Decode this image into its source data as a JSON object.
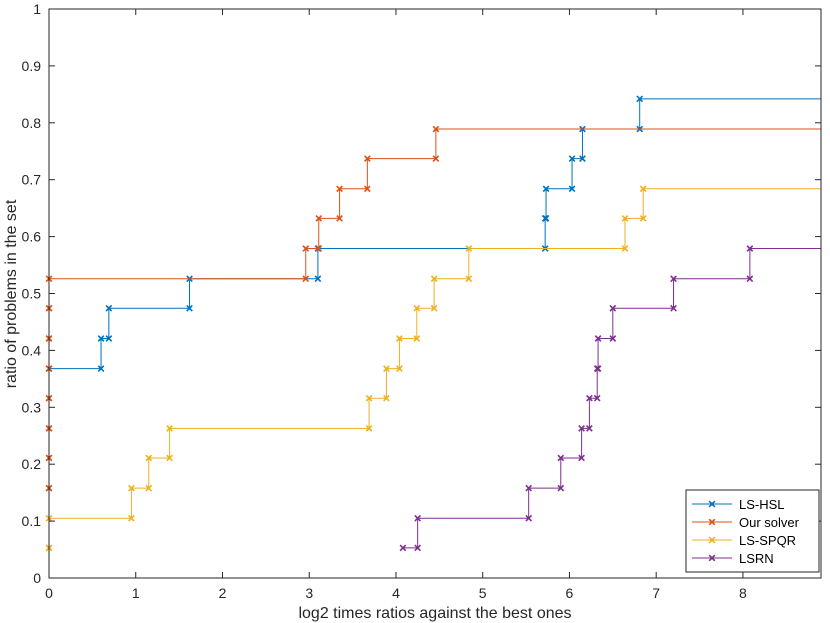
{
  "chart_data": {
    "type": "line",
    "step": true,
    "title": "",
    "xlabel": "log2 times ratios against the best ones",
    "ylabel": "ratio of problems in the set",
    "xlim": [
      0,
      8.9
    ],
    "ylim": [
      0,
      1
    ],
    "xticks": [
      0,
      1,
      2,
      3,
      4,
      5,
      6,
      7,
      8
    ],
    "yticks": [
      0,
      0.1,
      0.2,
      0.3,
      0.4,
      0.5,
      0.6,
      0.7,
      0.8,
      0.9,
      1
    ],
    "xtick_labels": [
      "0",
      "1",
      "2",
      "3",
      "4",
      "5",
      "6",
      "7",
      "8"
    ],
    "ytick_labels": [
      "0",
      "0.1",
      "0.2",
      "0.3",
      "0.4",
      "0.5",
      "0.6",
      "0.7",
      "0.8",
      "0.9",
      "1"
    ],
    "legend_position": "bottom-right",
    "series": [
      {
        "name": "LS-HSL",
        "color": "#0072BD",
        "points": [
          [
            0,
            0.368
          ],
          [
            0.6,
            0.421
          ],
          [
            0.69,
            0.474
          ],
          [
            1.62,
            0.526
          ],
          [
            3.1,
            0.579
          ],
          [
            5.72,
            0.632
          ],
          [
            5.73,
            0.684
          ],
          [
            6.03,
            0.737
          ],
          [
            6.15,
            0.789
          ],
          [
            6.81,
            0.842
          ],
          [
            8.9,
            0.842
          ]
        ]
      },
      {
        "name": "Our solver",
        "color": "#D95319",
        "points": [
          [
            0,
            0.158
          ],
          [
            0,
            0.211
          ],
          [
            0,
            0.263
          ],
          [
            0,
            0.316
          ],
          [
            0,
            0.368
          ],
          [
            0,
            0.421
          ],
          [
            0,
            0.474
          ],
          [
            0,
            0.526
          ],
          [
            2.96,
            0.579
          ],
          [
            3.11,
            0.632
          ],
          [
            3.35,
            0.684
          ],
          [
            3.67,
            0.737
          ],
          [
            4.46,
            0.789
          ],
          [
            8.9,
            0.789
          ]
        ]
      },
      {
        "name": "LS-SPQR",
        "color": "#EDB120",
        "points": [
          [
            0,
            0.053
          ],
          [
            0,
            0.105
          ],
          [
            0.95,
            0.158
          ],
          [
            1.15,
            0.211
          ],
          [
            1.39,
            0.263
          ],
          [
            3.69,
            0.316
          ],
          [
            3.89,
            0.368
          ],
          [
            4.04,
            0.421
          ],
          [
            4.24,
            0.474
          ],
          [
            4.44,
            0.526
          ],
          [
            4.84,
            0.579
          ],
          [
            6.64,
            0.632
          ],
          [
            6.85,
            0.684
          ],
          [
            8.9,
            0.684
          ]
        ]
      },
      {
        "name": "LSRN",
        "color": "#7E2F8E",
        "points": [
          [
            4.08,
            0.053
          ],
          [
            4.25,
            0.105
          ],
          [
            5.53,
            0.158
          ],
          [
            5.9,
            0.211
          ],
          [
            6.14,
            0.263
          ],
          [
            6.23,
            0.316
          ],
          [
            6.32,
            0.368
          ],
          [
            6.33,
            0.421
          ],
          [
            6.5,
            0.474
          ],
          [
            7.2,
            0.526
          ],
          [
            8.08,
            0.579
          ],
          [
            8.9,
            0.579
          ]
        ]
      }
    ]
  }
}
